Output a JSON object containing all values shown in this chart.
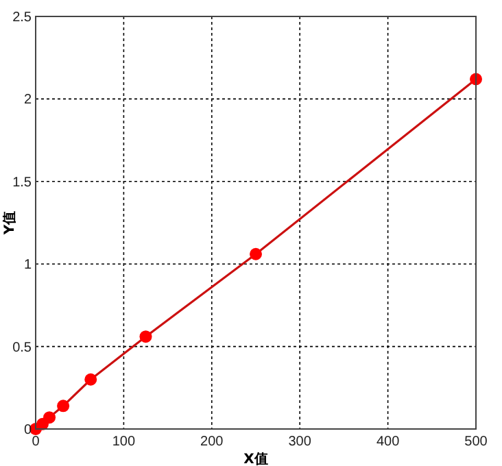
{
  "chart_data": {
    "type": "line",
    "xlabel": "X值",
    "ylabel": "Y值",
    "x": [
      0,
      7.8,
      15.6,
      31.25,
      62.5,
      125,
      250,
      500
    ],
    "series": [
      {
        "color": "#ff0000",
        "values": [
          0.0,
          0.03,
          0.07,
          0.14,
          0.3,
          0.56,
          1.06,
          2.12
        ]
      }
    ],
    "xlim": [
      0,
      500
    ],
    "xticks": [
      0,
      100,
      200,
      300,
      400,
      500
    ],
    "ylim": [
      0,
      2.5
    ],
    "yticks": [
      0,
      0.5,
      1,
      1.5,
      2,
      2.5
    ],
    "grid": true,
    "marker": "circle",
    "line_style": "solid"
  }
}
